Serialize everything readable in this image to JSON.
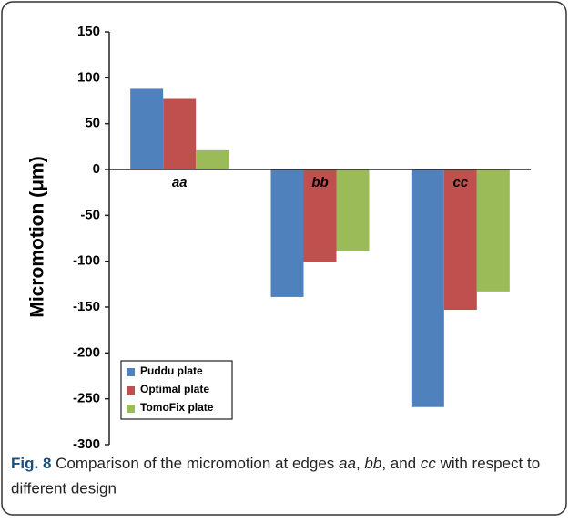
{
  "chart_data": {
    "type": "bar",
    "ylabel": "Micromotion (μm)",
    "categories": [
      "aa",
      "bb",
      "cc"
    ],
    "series": [
      {
        "name": "Puddu plate",
        "color": "#4f81bd",
        "values": [
          88,
          -139,
          -259
        ]
      },
      {
        "name": "Optimal plate",
        "color": "#c0504d",
        "values": [
          77,
          -101,
          -153
        ]
      },
      {
        "name": "TomoFix plate",
        "color": "#9bbb59",
        "values": [
          21,
          -89,
          -133
        ]
      }
    ],
    "ylim": [
      -300,
      150
    ],
    "yticks": [
      -300,
      -250,
      -200,
      -150,
      -100,
      -50,
      0,
      50,
      100,
      150
    ],
    "legend": "lower left",
    "caption": [
      "Fig. 8",
      " Comparison of the micromotion at edges ",
      "aa",
      ", ",
      "bb",
      ", and ",
      "cc",
      " with respect to",
      "different design"
    ]
  }
}
